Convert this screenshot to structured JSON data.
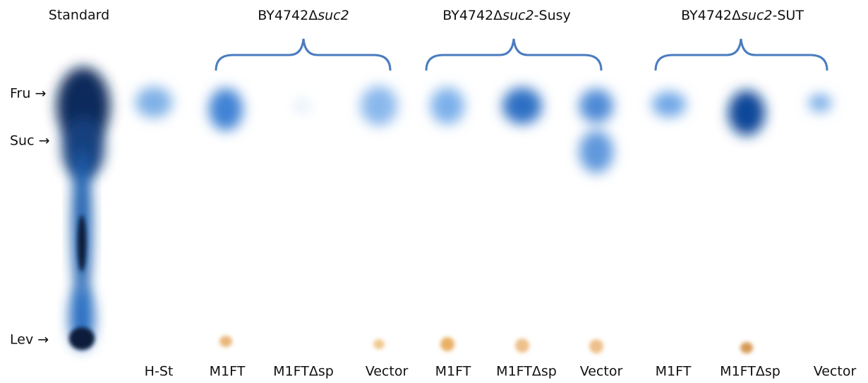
{
  "header": {
    "standard": "Standard",
    "groups": [
      [
        "BY4742Δ",
        "suc2"
      ],
      [
        "BY4742Δ",
        "suc2",
        "-Susy"
      ],
      [
        "BY4742Δ",
        "suc2",
        "-SUT"
      ]
    ]
  },
  "markers": [
    "Fru →",
    "Suc →",
    "Lev →"
  ],
  "lanes": [
    "H-St",
    "M1FT",
    "M1FTΔsp",
    "Vector",
    "M1FT",
    "M1FTΔsp",
    "Vector",
    "M1FT",
    "M1FTΔsp",
    "Vector"
  ]
}
